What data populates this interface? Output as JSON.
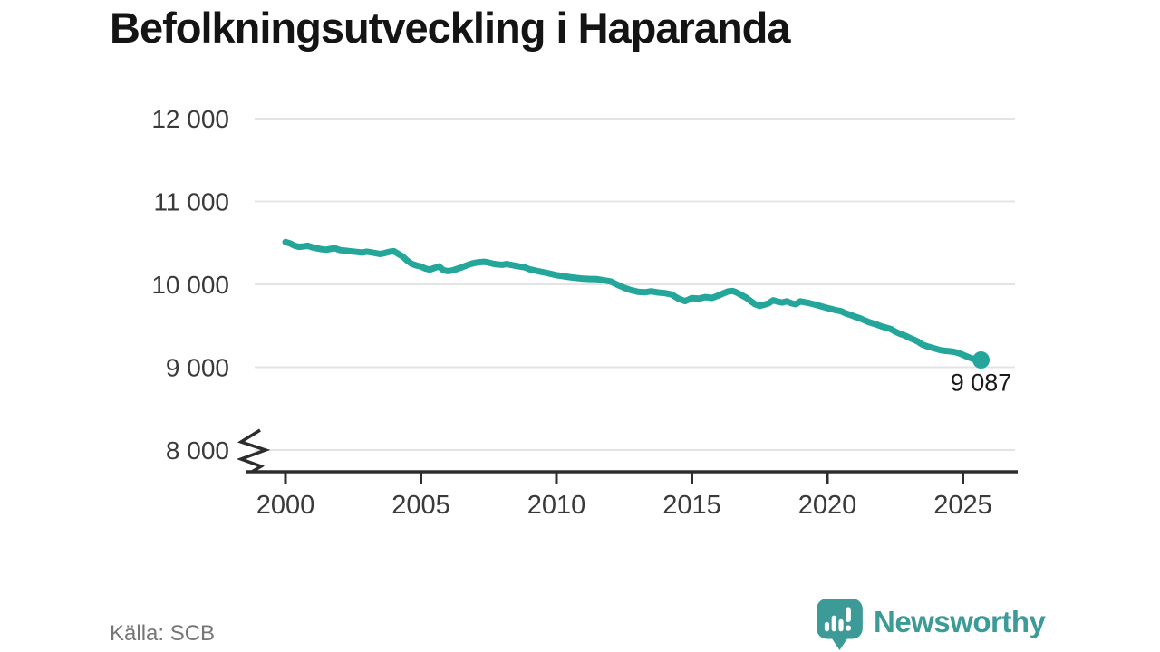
{
  "header": {
    "title": "Befolkningsutveckling i Haparanda"
  },
  "footer": {
    "source": "Källa: SCB",
    "brand": "Newsworthy"
  },
  "colors": {
    "line": "#24a79a",
    "end_dot": "#24a79a",
    "logo": "#3d9b97",
    "grid": "#e4e4e4",
    "axis": "#2d2d2d",
    "tick_text": "#3a3a3a",
    "annotation_text": "#1a1a1a"
  },
  "chart_data": {
    "type": "line",
    "title": "Befolkningsutveckling i Haparanda",
    "xlabel": "",
    "ylabel": "",
    "x_range": [
      2000,
      2025.67
    ],
    "ylim": [
      8000,
      12000
    ],
    "y_axis_break": true,
    "grid": "horizontal",
    "legend": "none",
    "y_ticks": [
      {
        "label": "12 000",
        "value": 12000
      },
      {
        "label": "11 000",
        "value": 11000
      },
      {
        "label": "10 000",
        "value": 10000
      },
      {
        "label": "9 000",
        "value": 9000
      },
      {
        "label": "8 000",
        "value": 8000
      }
    ],
    "x_ticks": [
      {
        "label": "2000",
        "value": 2000
      },
      {
        "label": "2005",
        "value": 2005
      },
      {
        "label": "2010",
        "value": 2010
      },
      {
        "label": "2015",
        "value": 2015
      },
      {
        "label": "2020",
        "value": 2020
      },
      {
        "label": "2025",
        "value": 2025
      }
    ],
    "end_annotation": {
      "label": "9 087",
      "value": 9087
    },
    "points": [
      [
        2000.0,
        10512
      ],
      [
        2000.17,
        10494
      ],
      [
        2000.33,
        10468
      ],
      [
        2000.5,
        10452
      ],
      [
        2000.67,
        10458
      ],
      [
        2000.83,
        10466
      ],
      [
        2001.0,
        10446
      ],
      [
        2001.17,
        10434
      ],
      [
        2001.33,
        10424
      ],
      [
        2001.5,
        10418
      ],
      [
        2001.67,
        10428
      ],
      [
        2001.83,
        10436
      ],
      [
        2002.0,
        10414
      ],
      [
        2002.17,
        10408
      ],
      [
        2002.33,
        10402
      ],
      [
        2002.5,
        10396
      ],
      [
        2002.67,
        10390
      ],
      [
        2002.83,
        10384
      ],
      [
        2003.0,
        10394
      ],
      [
        2003.17,
        10386
      ],
      [
        2003.33,
        10376
      ],
      [
        2003.5,
        10366
      ],
      [
        2003.67,
        10378
      ],
      [
        2003.83,
        10392
      ],
      [
        2004.0,
        10400
      ],
      [
        2004.17,
        10366
      ],
      [
        2004.33,
        10336
      ],
      [
        2004.5,
        10284
      ],
      [
        2004.67,
        10246
      ],
      [
        2004.83,
        10228
      ],
      [
        2005.0,
        10214
      ],
      [
        2005.17,
        10190
      ],
      [
        2005.33,
        10178
      ],
      [
        2005.5,
        10198
      ],
      [
        2005.67,
        10216
      ],
      [
        2005.83,
        10170
      ],
      [
        2006.0,
        10160
      ],
      [
        2006.17,
        10168
      ],
      [
        2006.33,
        10186
      ],
      [
        2006.5,
        10204
      ],
      [
        2006.67,
        10226
      ],
      [
        2006.83,
        10246
      ],
      [
        2007.0,
        10260
      ],
      [
        2007.17,
        10268
      ],
      [
        2007.33,
        10272
      ],
      [
        2007.5,
        10262
      ],
      [
        2007.67,
        10248
      ],
      [
        2007.83,
        10240
      ],
      [
        2008.0,
        10236
      ],
      [
        2008.17,
        10246
      ],
      [
        2008.33,
        10234
      ],
      [
        2008.5,
        10224
      ],
      [
        2008.67,
        10214
      ],
      [
        2008.83,
        10206
      ],
      [
        2009.0,
        10182
      ],
      [
        2009.17,
        10170
      ],
      [
        2009.33,
        10158
      ],
      [
        2009.5,
        10146
      ],
      [
        2009.67,
        10136
      ],
      [
        2009.83,
        10124
      ],
      [
        2010.0,
        10110
      ],
      [
        2010.25,
        10098
      ],
      [
        2010.5,
        10086
      ],
      [
        2010.75,
        10076
      ],
      [
        2011.0,
        10068
      ],
      [
        2011.25,
        10064
      ],
      [
        2011.5,
        10062
      ],
      [
        2011.75,
        10048
      ],
      [
        2012.0,
        10035
      ],
      [
        2012.2,
        10002
      ],
      [
        2012.5,
        9958
      ],
      [
        2012.75,
        9930
      ],
      [
        2013.0,
        9910
      ],
      [
        2013.25,
        9904
      ],
      [
        2013.5,
        9916
      ],
      [
        2013.75,
        9902
      ],
      [
        2014.0,
        9894
      ],
      [
        2014.25,
        9878
      ],
      [
        2014.5,
        9828
      ],
      [
        2014.75,
        9797
      ],
      [
        2015.0,
        9834
      ],
      [
        2015.25,
        9827
      ],
      [
        2015.5,
        9846
      ],
      [
        2015.75,
        9836
      ],
      [
        2016.0,
        9868
      ],
      [
        2016.17,
        9892
      ],
      [
        2016.33,
        9914
      ],
      [
        2016.5,
        9920
      ],
      [
        2016.67,
        9898
      ],
      [
        2016.83,
        9870
      ],
      [
        2017.0,
        9840
      ],
      [
        2017.17,
        9798
      ],
      [
        2017.33,
        9760
      ],
      [
        2017.5,
        9740
      ],
      [
        2017.67,
        9754
      ],
      [
        2017.83,
        9770
      ],
      [
        2018.0,
        9808
      ],
      [
        2018.17,
        9790
      ],
      [
        2018.33,
        9780
      ],
      [
        2018.5,
        9794
      ],
      [
        2018.67,
        9772
      ],
      [
        2018.83,
        9760
      ],
      [
        2019.0,
        9794
      ],
      [
        2019.17,
        9784
      ],
      [
        2019.33,
        9774
      ],
      [
        2019.5,
        9760
      ],
      [
        2019.67,
        9744
      ],
      [
        2019.83,
        9730
      ],
      [
        2020.0,
        9714
      ],
      [
        2020.17,
        9700
      ],
      [
        2020.33,
        9686
      ],
      [
        2020.5,
        9676
      ],
      [
        2020.67,
        9650
      ],
      [
        2020.83,
        9634
      ],
      [
        2021.0,
        9612
      ],
      [
        2021.17,
        9594
      ],
      [
        2021.33,
        9572
      ],
      [
        2021.5,
        9548
      ],
      [
        2021.67,
        9530
      ],
      [
        2021.83,
        9514
      ],
      [
        2022.0,
        9492
      ],
      [
        2022.17,
        9476
      ],
      [
        2022.33,
        9462
      ],
      [
        2022.5,
        9430
      ],
      [
        2022.67,
        9404
      ],
      [
        2022.83,
        9386
      ],
      [
        2023.0,
        9360
      ],
      [
        2023.17,
        9336
      ],
      [
        2023.33,
        9310
      ],
      [
        2023.5,
        9274
      ],
      [
        2023.67,
        9252
      ],
      [
        2023.83,
        9238
      ],
      [
        2024.0,
        9222
      ],
      [
        2024.17,
        9206
      ],
      [
        2024.33,
        9198
      ],
      [
        2024.5,
        9192
      ],
      [
        2024.67,
        9186
      ],
      [
        2024.83,
        9172
      ],
      [
        2025.0,
        9150
      ],
      [
        2025.17,
        9126
      ],
      [
        2025.33,
        9106
      ],
      [
        2025.5,
        9094
      ],
      [
        2025.67,
        9087
      ]
    ]
  }
}
